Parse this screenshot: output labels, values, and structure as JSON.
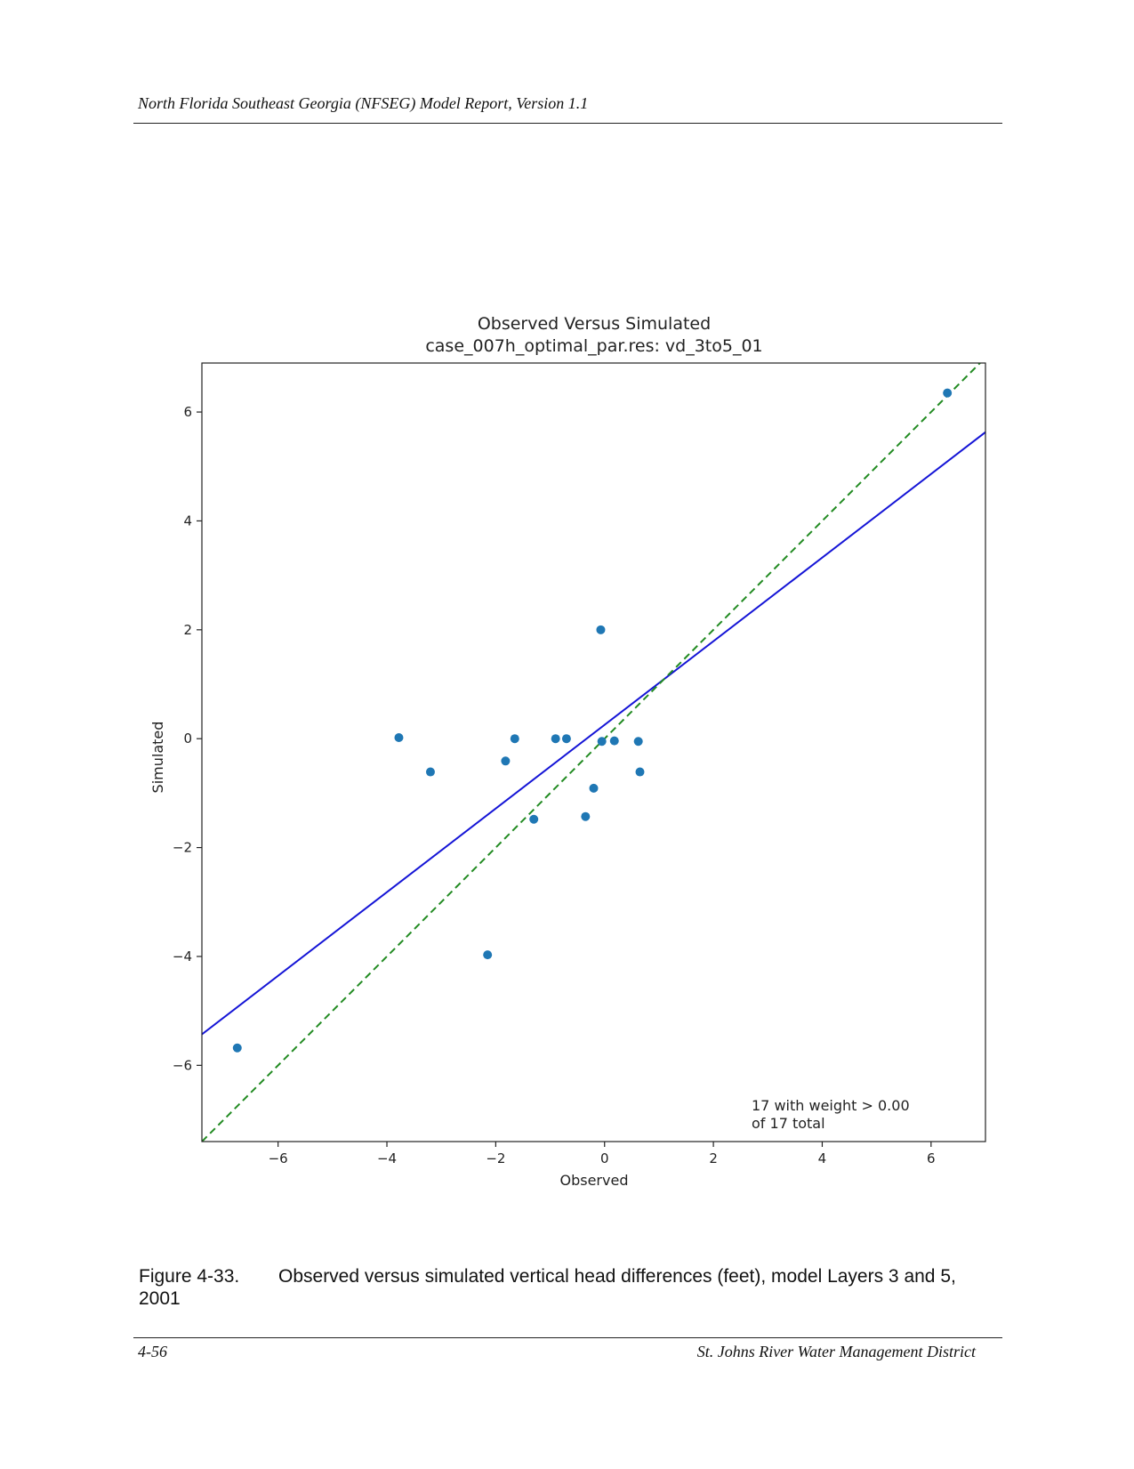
{
  "header": {
    "text": "North Florida Southeast Georgia (NFSEG) Model Report, Version 1.1"
  },
  "chart_data": {
    "type": "scatter",
    "title": "Observed Versus Simulated",
    "subtitle": "case_007h_optimal_par.res: vd_3to5_01",
    "xlabel": "Observed",
    "ylabel": "Simulated",
    "xlim": [
      -7.4,
      7.0
    ],
    "ylim": [
      -7.4,
      6.9
    ],
    "xticks": [
      -6,
      -4,
      -2,
      0,
      2,
      4,
      6
    ],
    "yticks": [
      -6,
      -4,
      -2,
      0,
      2,
      4,
      6
    ],
    "tick_labels": {
      "-6": "−6",
      "-4": "−4",
      "-2": "−2",
      "0": "0",
      "2": "2",
      "4": "4",
      "6": "6"
    },
    "grid": false,
    "point_color": "#1f77b4",
    "points": [
      {
        "x": -6.75,
        "y": -5.68
      },
      {
        "x": -3.78,
        "y": 0.02
      },
      {
        "x": -3.2,
        "y": -0.61
      },
      {
        "x": -2.15,
        "y": -3.97
      },
      {
        "x": -1.82,
        "y": -0.41
      },
      {
        "x": -1.65,
        "y": 0.0
      },
      {
        "x": -1.3,
        "y": -1.48
      },
      {
        "x": -0.9,
        "y": 0.0
      },
      {
        "x": -0.7,
        "y": 0.0
      },
      {
        "x": -0.35,
        "y": -1.43
      },
      {
        "x": -0.2,
        "y": -0.91
      },
      {
        "x": -0.07,
        "y": 2.0
      },
      {
        "x": -0.05,
        "y": -0.05
      },
      {
        "x": 0.18,
        "y": -0.04
      },
      {
        "x": 0.62,
        "y": -0.05
      },
      {
        "x": 0.65,
        "y": -0.61
      },
      {
        "x": 6.3,
        "y": 6.35
      }
    ],
    "lines": [
      {
        "kind": "fit",
        "color": "#1414d6",
        "style": "solid",
        "x": [
          -7.4,
          7.0
        ],
        "y": [
          -5.43,
          5.63
        ]
      },
      {
        "kind": "one-to-one",
        "color": "#228b22",
        "style": "dashed",
        "x": [
          -7.4,
          7.0
        ],
        "y": [
          -7.4,
          7.0
        ]
      }
    ],
    "annotation": [
      "17 with weight > 0.00",
      "of 17 total"
    ]
  },
  "caption": {
    "label": "Figure 4-33.",
    "text": "Observed versus simulated vertical head differences (feet), model Layers 3 and 5, 2001"
  },
  "footer": {
    "page": "4-56",
    "org": "St. Johns River Water Management District"
  }
}
